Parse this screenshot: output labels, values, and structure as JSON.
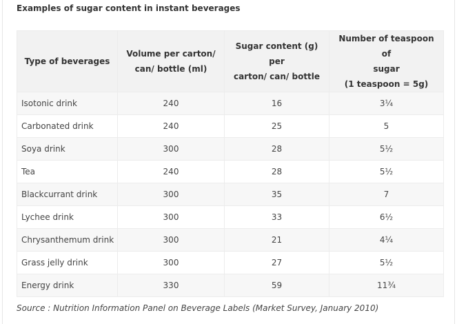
{
  "title": "Examples of sugar content in instant beverages",
  "table": {
    "headers": [
      [
        "Type of beverages"
      ],
      [
        "Volume per carton/",
        "can/ bottle (ml)"
      ],
      [
        "Sugar content (g) per",
        "carton/ can/ bottle"
      ],
      [
        "Number of teaspoon of",
        "sugar",
        "(1 teaspoon = 5g)"
      ]
    ],
    "rows": [
      [
        "Isotonic drink",
        "240",
        "16",
        "3¼"
      ],
      [
        "Carbonated drink",
        "240",
        "25",
        "5"
      ],
      [
        "Soya drink",
        "300",
        "28",
        "5½"
      ],
      [
        "Tea",
        "240",
        "28",
        "5½"
      ],
      [
        "Blackcurrant drink",
        "300",
        "35",
        "7"
      ],
      [
        "Lychee drink",
        "300",
        "33",
        "6½"
      ],
      [
        "Chrysanthemum drink",
        "300",
        "21",
        "4¼"
      ],
      [
        "Grass jelly drink",
        "300",
        "27",
        "5½"
      ],
      [
        "Energy drink",
        "330",
        "59",
        "11¾"
      ]
    ]
  },
  "source": "Source : Nutrition Information Panel on Beverage Labels (Market Survey, January 2010)",
  "colors": {
    "header_bg": "#f2f2f2",
    "row_odd_bg": "#f7f7f7",
    "row_even_bg": "#ffffff",
    "border": "#ececec",
    "text": "#333333"
  }
}
